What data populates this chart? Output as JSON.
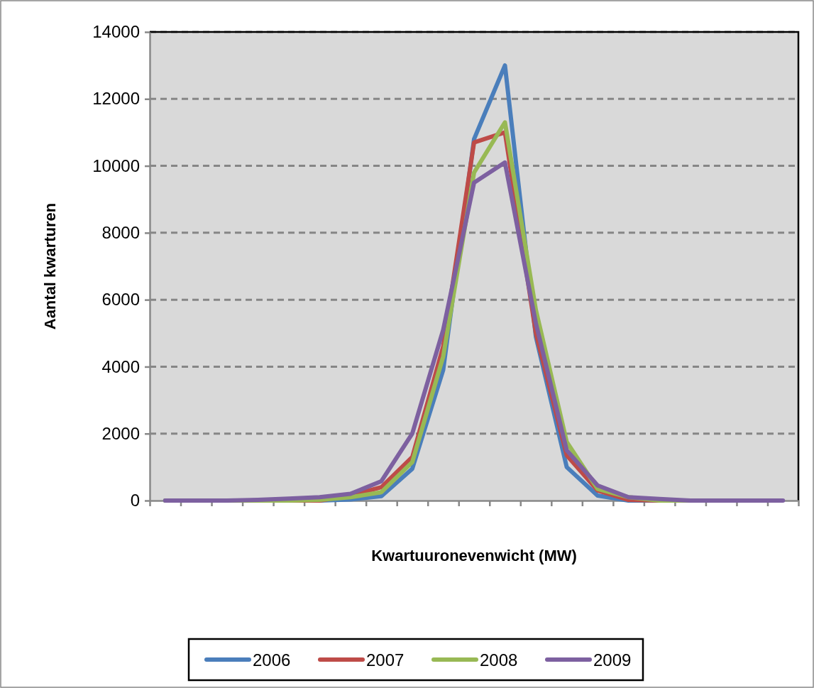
{
  "chart_data": {
    "type": "line",
    "xlabel": "Kwartuuronevenwicht (MW)",
    "ylabel": "Aantal kwarturen",
    "categories": [
      null,
      null,
      null,
      null,
      null,
      null,
      null,
      null,
      null,
      null,
      null,
      null,
      null,
      null,
      null,
      null,
      null,
      null,
      null,
      null,
      null
    ],
    "ylim": [
      0,
      14000
    ],
    "yticks": [
      0,
      2000,
      4000,
      6000,
      8000,
      10000,
      12000,
      14000
    ],
    "grid": "y",
    "legend": "bottom",
    "marker": "none",
    "line_style": "solid",
    "series": [
      {
        "name": "2006",
        "color": "#4a7ebb",
        "values": [
          0,
          0,
          0,
          0,
          0,
          0,
          30,
          130,
          950,
          3900,
          10800,
          13000,
          4900,
          1000,
          150,
          0,
          0,
          0,
          0,
          null,
          null
        ]
      },
      {
        "name": "2007",
        "color": "#be4b48",
        "values": [
          null,
          null,
          null,
          0,
          0,
          0,
          150,
          400,
          1300,
          4600,
          10700,
          11000,
          5000,
          1350,
          300,
          20,
          0,
          0,
          null,
          null,
          null
        ]
      },
      {
        "name": "2008",
        "color": "#98b954",
        "values": [
          0,
          0,
          0,
          0,
          0,
          20,
          100,
          250,
          1150,
          4300,
          9800,
          11300,
          5700,
          1750,
          350,
          100,
          0,
          0,
          0,
          null,
          null
        ]
      },
      {
        "name": "2009",
        "color": "#7d60a0",
        "values": [
          0,
          0,
          0,
          20,
          60,
          100,
          200,
          580,
          2000,
          5100,
          9500,
          10100,
          5300,
          1500,
          450,
          100,
          50,
          0,
          0,
          0,
          0
        ]
      }
    ]
  }
}
